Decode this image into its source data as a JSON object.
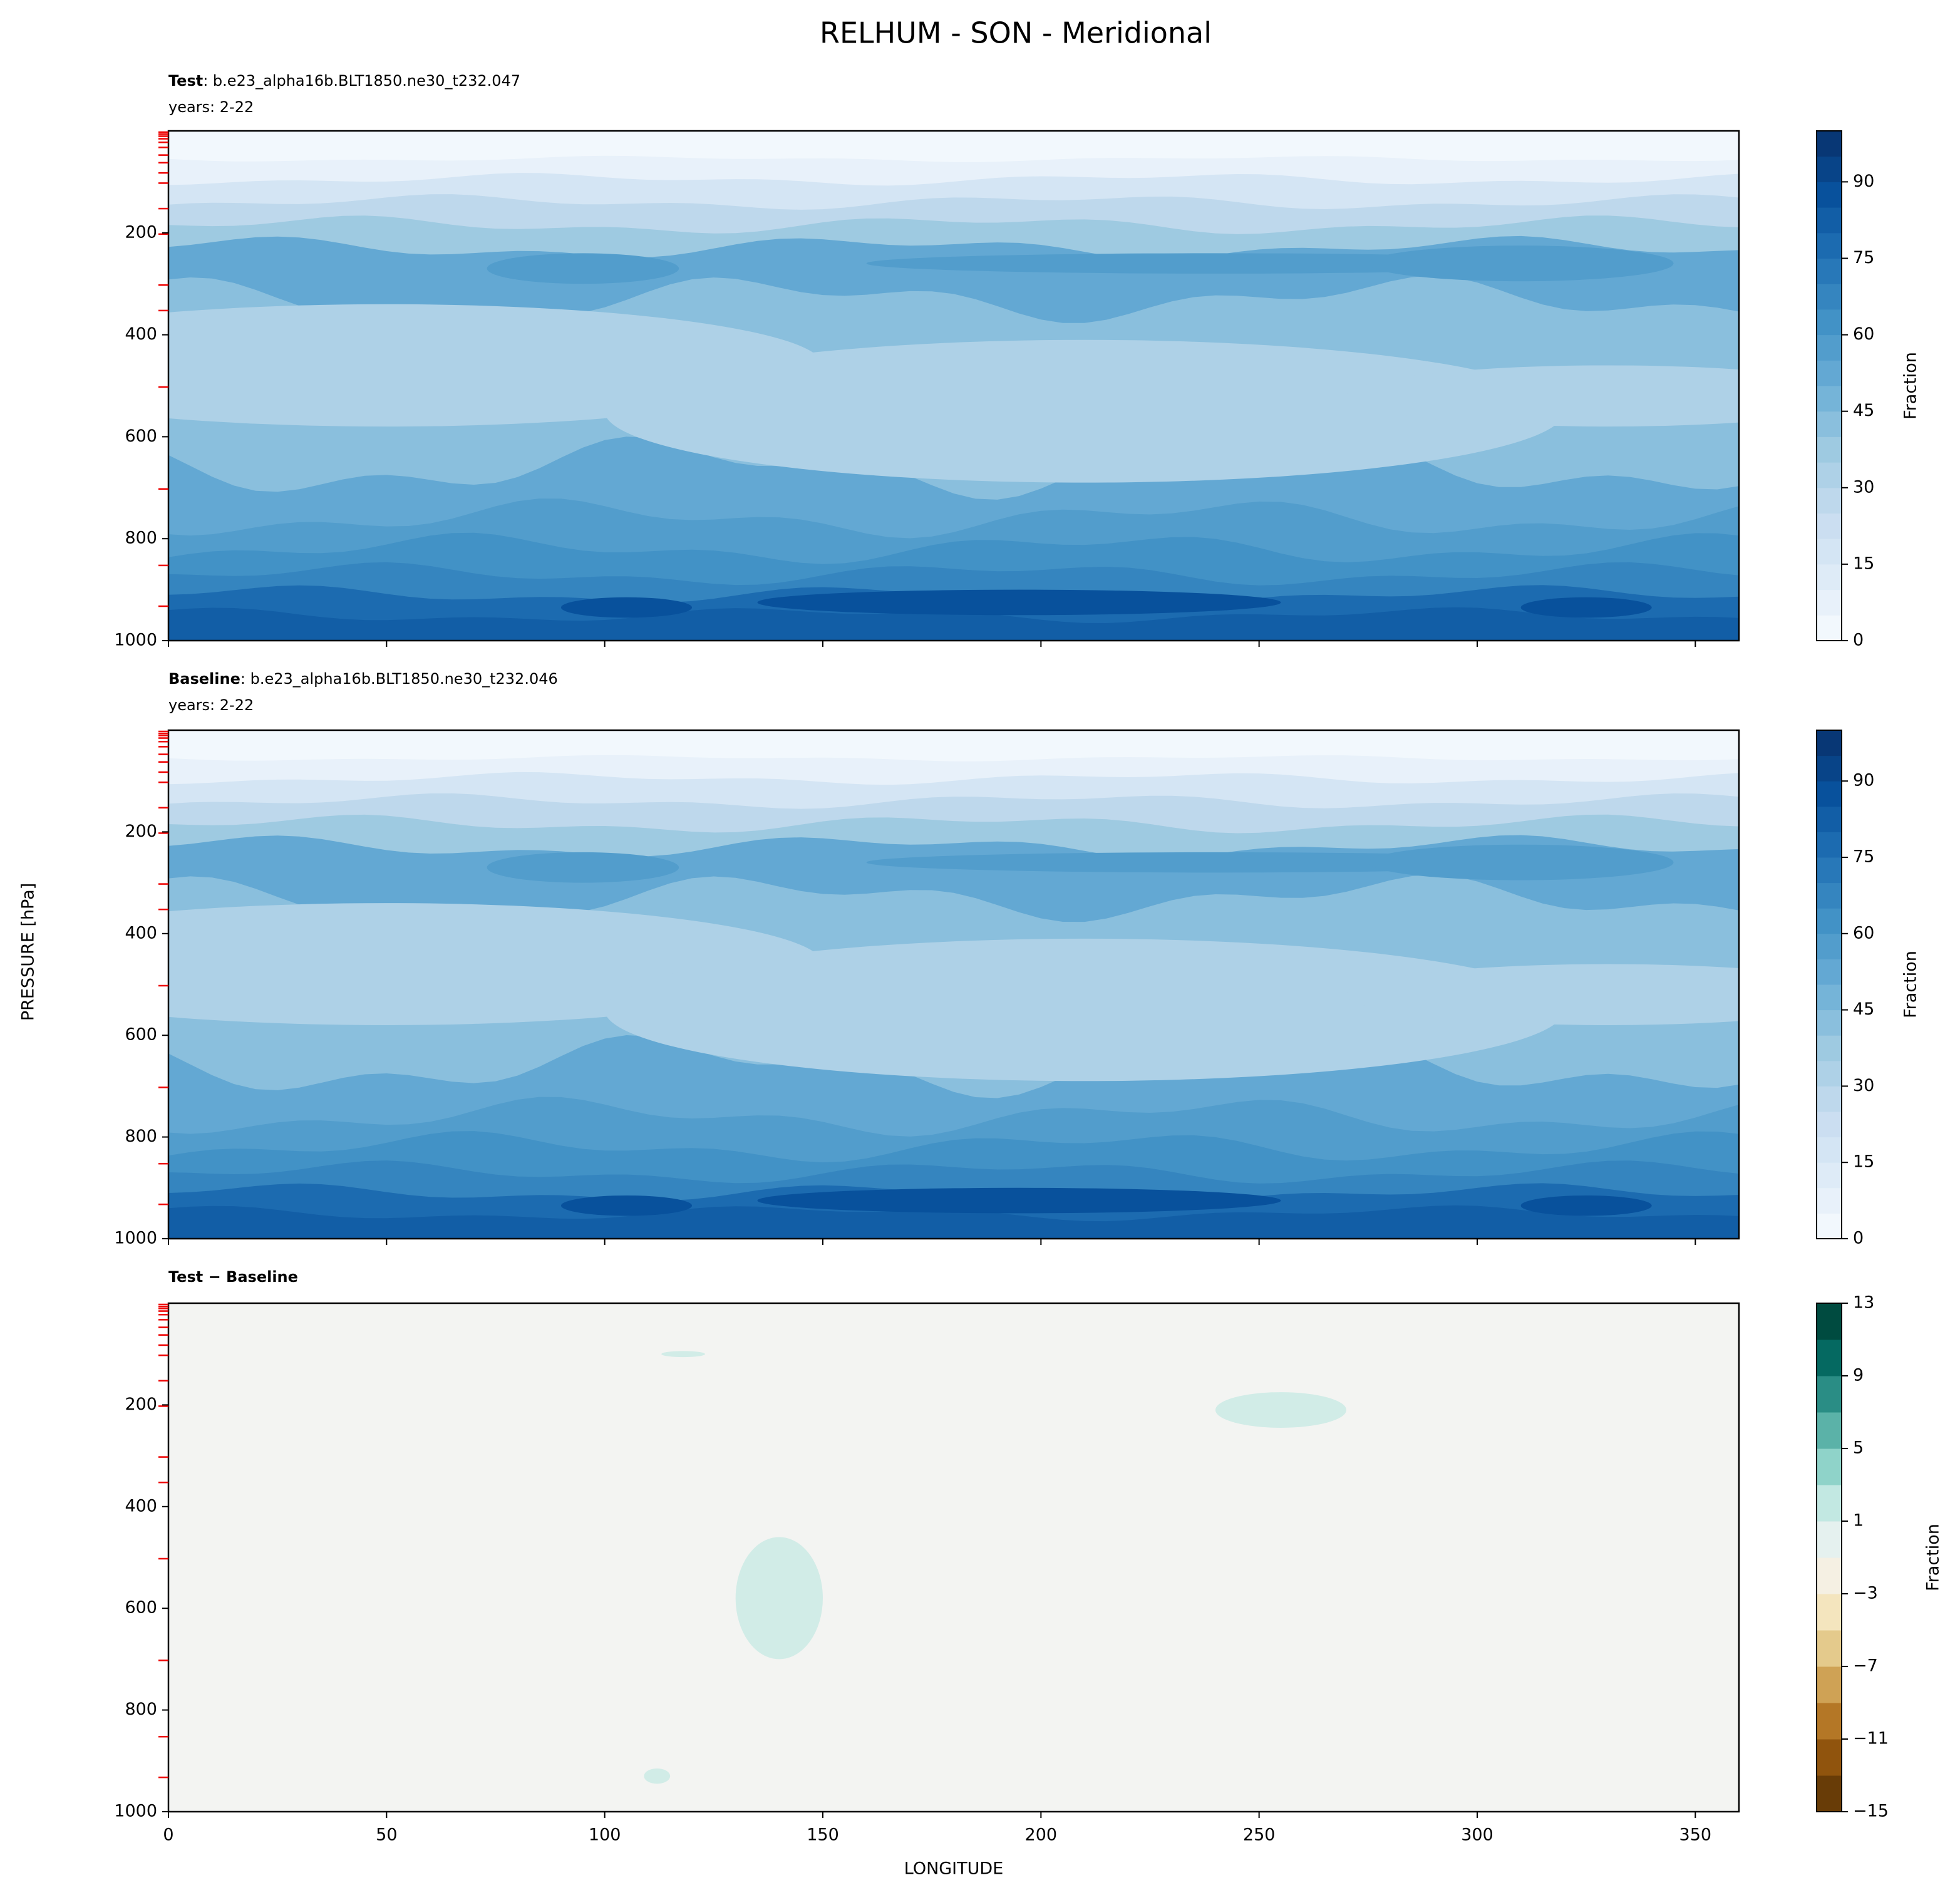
{
  "title": "RELHUM - SON - Meridional",
  "ylabel": "PRESSURE [hPa]",
  "chart_data": [
    {
      "type": "contour",
      "label": "Test",
      "case": ": b.e23_alpha16b.BLT1850.ne30_t232.047",
      "years": "years: 2-22",
      "colormap": "Blues",
      "xlim": [
        0,
        360
      ],
      "xticks": [
        0,
        50,
        100,
        150,
        200,
        250,
        300,
        350
      ],
      "xtick_labels": false,
      "ylim": [
        1000,
        0
      ],
      "yticks": [
        200,
        400,
        600,
        800,
        1000
      ],
      "colorbar": {
        "label": "Fraction",
        "lim": [
          0,
          100
        ],
        "step": 5,
        "ticks": [
          0,
          15,
          30,
          45,
          60,
          75,
          90
        ]
      }
    },
    {
      "type": "contour",
      "label": "Baseline",
      "case": ": b.e23_alpha16b.BLT1850.ne30_t232.046",
      "years": "years: 2-22",
      "colormap": "Blues",
      "xlim": [
        0,
        360
      ],
      "xticks": [
        0,
        50,
        100,
        150,
        200,
        250,
        300,
        350
      ],
      "xtick_labels": false,
      "ylim": [
        1000,
        0
      ],
      "yticks": [
        200,
        400,
        600,
        800,
        1000
      ],
      "colorbar": {
        "label": "Fraction",
        "lim": [
          0,
          100
        ],
        "step": 5,
        "ticks": [
          0,
          15,
          30,
          45,
          60,
          75,
          90
        ]
      }
    },
    {
      "type": "difference",
      "label": "Test − Baseline",
      "colormap": "BrBG",
      "xlim": [
        0,
        360
      ],
      "xticks": [
        0,
        50,
        100,
        150,
        200,
        250,
        300,
        350
      ],
      "xtick_labels": true,
      "xlabel": "LONGITUDE",
      "ylim": [
        1000,
        0
      ],
      "yticks": [
        200,
        400,
        600,
        800,
        1000
      ],
      "colorbar": {
        "label": "Fraction",
        "lim": [
          -15,
          13
        ],
        "step": 2,
        "ticks": [
          {
            "value": -15,
            "label": "−15"
          },
          {
            "value": -11,
            "label": "−11"
          },
          {
            "value": -7,
            "label": "−7"
          },
          {
            "value": -3,
            "label": "−3"
          },
          1,
          5,
          9,
          13
        ]
      }
    }
  ]
}
